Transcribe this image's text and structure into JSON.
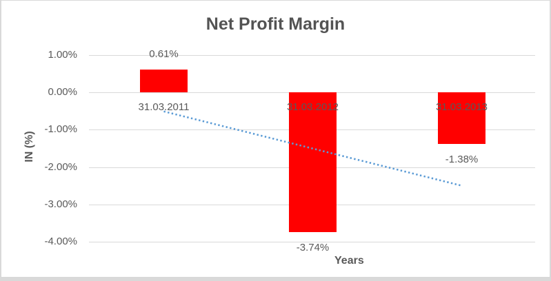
{
  "chart_data": {
    "type": "bar",
    "title": "Net Profit Margin",
    "xlabel": "Years",
    "ylabel": "IN (%)",
    "categories": [
      "31.03.2011",
      "31.03.2012",
      "31.03.2013"
    ],
    "values": [
      0.61,
      -3.74,
      -1.38
    ],
    "data_labels": [
      "0.61%",
      "-3.74%",
      "-1.38%"
    ],
    "y_ticks": [
      {
        "value": 1.0,
        "label": "1.00%"
      },
      {
        "value": 0.0,
        "label": "0.00%"
      },
      {
        "value": -1.0,
        "label": "-1.00%"
      },
      {
        "value": -2.0,
        "label": "-2.00%"
      },
      {
        "value": -3.0,
        "label": "-3.00%"
      },
      {
        "value": -4.0,
        "label": "-4.00%"
      }
    ],
    "ylim": [
      -4.0,
      1.0
    ],
    "grid": true,
    "legend": false,
    "bar_color": "#FF0000",
    "trendline": {
      "type": "linear",
      "style": "dotted",
      "color": "#5B9BD5"
    },
    "colors": {
      "title_text": "#535353",
      "axis_text": "#595959",
      "gridline": "#D9D9D9",
      "border": "#D9D9D9",
      "background": "#FFFFFF"
    }
  }
}
